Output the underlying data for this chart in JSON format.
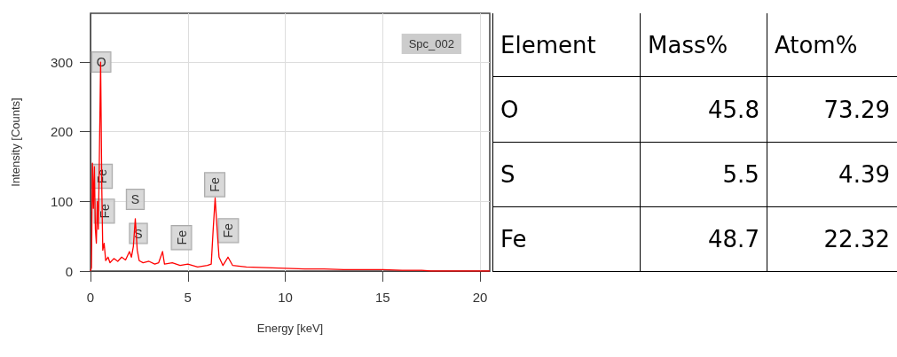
{
  "chart_data": [
    {
      "type": "line",
      "xlabel": "Energy [keV]",
      "ylabel": "Intensity [Counts]",
      "xlim": [
        0,
        20.5
      ],
      "xticks": [
        0,
        5,
        10,
        15,
        20
      ],
      "ylim": [
        0,
        370
      ],
      "yticks": [
        0,
        100,
        200,
        300
      ],
      "grid": true,
      "marker": "none",
      "line_style": "solid",
      "series": [
        {
          "color": "#ff0000",
          "x": [
            0,
            0.05,
            0.1,
            0.15,
            0.2,
            0.25,
            0.3,
            0.35,
            0.4,
            0.45,
            0.52,
            0.58,
            0.63,
            0.7,
            0.78,
            0.9,
            1.0,
            1.2,
            1.4,
            1.6,
            1.8,
            2.0,
            2.1,
            2.2,
            2.3,
            2.4,
            2.5,
            2.7,
            3.0,
            3.3,
            3.5,
            3.7,
            3.8,
            4.2,
            4.6,
            5.0,
            5.5,
            6.0,
            6.2,
            6.3,
            6.4,
            6.5,
            6.6,
            6.8,
            7.06,
            7.3,
            8.0,
            9.0,
            10,
            11,
            12,
            13,
            14,
            15,
            16,
            17,
            17.5,
            20.5
          ],
          "values": [
            0,
            5,
            155,
            90,
            150,
            60,
            40,
            100,
            60,
            150,
            300,
            120,
            30,
            40,
            15,
            20,
            12,
            18,
            14,
            20,
            16,
            28,
            20,
            35,
            75,
            30,
            15,
            12,
            14,
            10,
            12,
            28,
            10,
            12,
            8,
            10,
            6,
            8,
            10,
            60,
            105,
            60,
            20,
            8,
            20,
            8,
            6,
            5,
            4,
            3,
            3,
            2,
            2,
            2,
            1,
            1,
            0,
            0
          ]
        }
      ],
      "annotations": [
        "Spc_002",
        {
          "text": "O",
          "x": 0.55,
          "y": 300
        },
        {
          "text": "Fe",
          "x": 0.6,
          "y": 136
        },
        {
          "text": "Fe",
          "x": 0.71,
          "y": 86
        },
        {
          "text": "S",
          "x": 2.3,
          "y": 103
        },
        {
          "text": "S",
          "x": 2.46,
          "y": 54
        },
        {
          "text": "Fe",
          "x": 4.67,
          "y": 48
        },
        {
          "text": "Fe",
          "x": 6.38,
          "y": 124
        },
        {
          "text": "Fe",
          "x": 7.08,
          "y": 58
        }
      ]
    },
    {
      "type": "other",
      "xlabel": "Element",
      "categories": [
        "O",
        "S",
        "Fe"
      ],
      "data_labels": true,
      "series": [
        {
          "name": "Mass%",
          "values": [
            45.8,
            5.5,
            48.7
          ]
        },
        {
          "name": "Atom%",
          "values": [
            73.29,
            4.39,
            22.32
          ]
        }
      ]
    }
  ]
}
